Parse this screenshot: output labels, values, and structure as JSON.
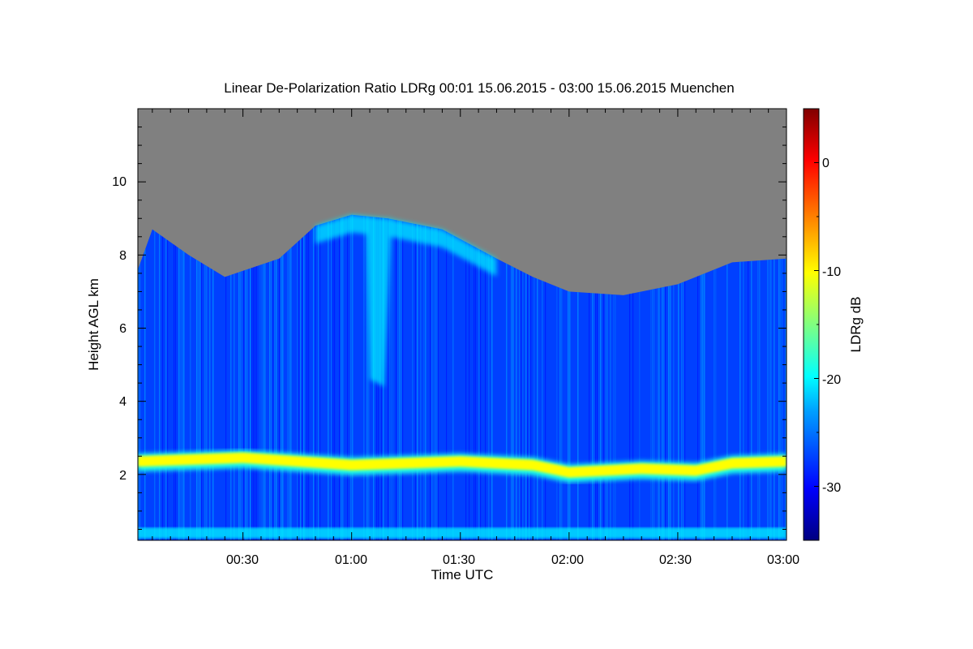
{
  "chart_data": {
    "type": "heatmap",
    "title": "Linear De-Polarization Ratio LDRg   00:01 15.06.2015 - 03:00 15.06.2015 Muenchen",
    "xlabel": "Time UTC",
    "ylabel": "Height AGL km",
    "xlim": [
      "00:01",
      "03:00"
    ],
    "ylim": [
      0.2,
      12.0
    ],
    "x_ticks": [
      "00:30",
      "01:00",
      "01:30",
      "02:00",
      "02:30",
      "03:00"
    ],
    "y_ticks": [
      2,
      4,
      6,
      8,
      10
    ],
    "colorbar": {
      "label": "LDRg dB",
      "range": [
        -35,
        5
      ],
      "ticks": [
        0,
        -10,
        -20,
        -30
      ]
    },
    "no_signal_color": "#808080",
    "colormap": [
      "#000080",
      "#0000ff",
      "#00a0ff",
      "#00ffff",
      "#80ff80",
      "#ffff00",
      "#ff8000",
      "#ff0000",
      "#800000"
    ],
    "features": {
      "signal_top_km": [
        {
          "time": "00:01",
          "height": 7.6
        },
        {
          "time": "00:05",
          "height": 8.7
        },
        {
          "time": "00:15",
          "height": 8.0
        },
        {
          "time": "00:25",
          "height": 7.4
        },
        {
          "time": "00:40",
          "height": 7.9
        },
        {
          "time": "00:50",
          "height": 8.8
        },
        {
          "time": "01:00",
          "height": 9.1
        },
        {
          "time": "01:10",
          "height": 9.0
        },
        {
          "time": "01:25",
          "height": 8.7
        },
        {
          "time": "01:40",
          "height": 7.9
        },
        {
          "time": "01:50",
          "height": 7.4
        },
        {
          "time": "02:00",
          "height": 7.0
        },
        {
          "time": "02:15",
          "height": 6.9
        },
        {
          "time": "02:30",
          "height": 7.2
        },
        {
          "time": "02:45",
          "height": 7.8
        },
        {
          "time": "03:00",
          "height": 7.9
        }
      ],
      "aerosol_layer_top_km": [
        {
          "time": "00:01",
          "height": 2.5
        },
        {
          "time": "00:30",
          "height": 2.6
        },
        {
          "time": "01:00",
          "height": 2.4
        },
        {
          "time": "01:30",
          "height": 2.5
        },
        {
          "time": "01:50",
          "height": 2.4
        },
        {
          "time": "02:00",
          "height": 2.2
        },
        {
          "time": "02:20",
          "height": 2.3
        },
        {
          "time": "02:35",
          "height": 2.25
        },
        {
          "time": "02:45",
          "height": 2.45
        },
        {
          "time": "03:00",
          "height": 2.5
        }
      ],
      "aerosol_layer_ldr_db": -10,
      "near_ground_layer_km": [
        0.25,
        0.55
      ],
      "near_ground_layer_ldr_db": -21,
      "cirrus_ldr_db": -21,
      "background_ldr_db": -28
    }
  }
}
